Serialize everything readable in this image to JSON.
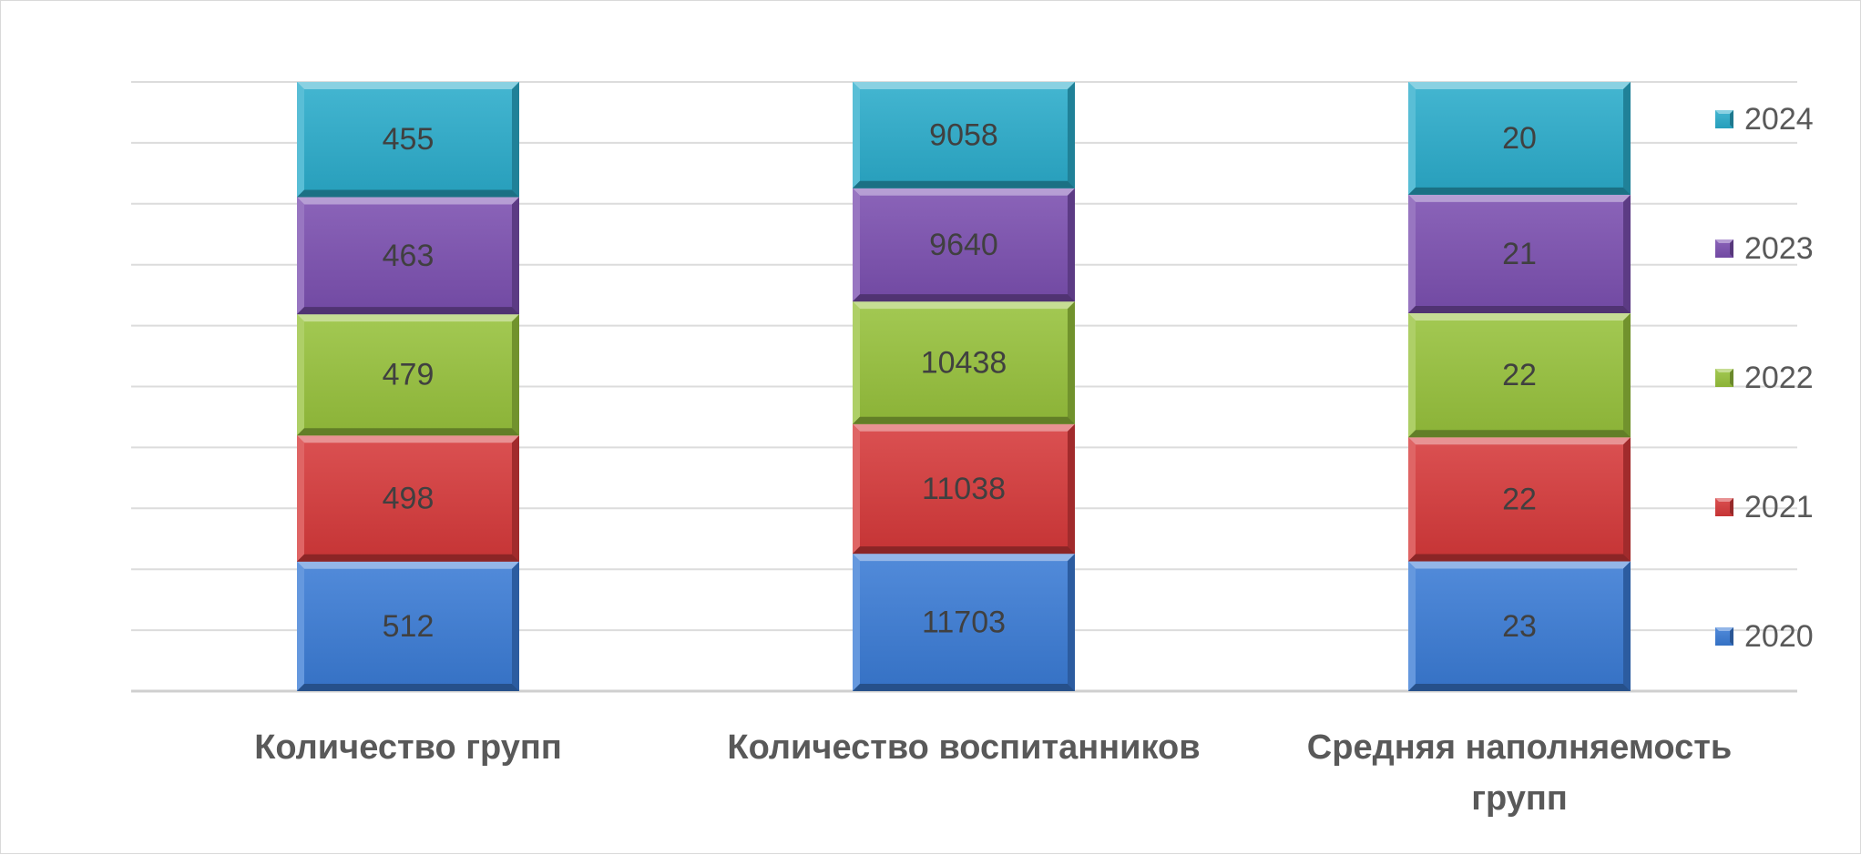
{
  "chart_data": {
    "type": "bar",
    "stacked": true,
    "percent_stacked": true,
    "style": "3d-bevel",
    "categories": [
      "Количество групп",
      "Количество воспитанников",
      "Средняя наполняемость групп"
    ],
    "series": [
      {
        "name": "2020",
        "values": [
          512,
          11703,
          23
        ],
        "color": "#3a7bd5"
      },
      {
        "name": "2021",
        "values": [
          498,
          11038,
          22
        ],
        "color": "#d6393a"
      },
      {
        "name": "2022",
        "values": [
          479,
          10438,
          22
        ],
        "color": "#97c23c"
      },
      {
        "name": "2023",
        "values": [
          463,
          9640,
          21
        ],
        "color": "#7b4fb0"
      },
      {
        "name": "2024",
        "values": [
          455,
          9058,
          20
        ],
        "color": "#2aaccb"
      }
    ],
    "grid": true,
    "legend": "right",
    "axis": {
      "y_tick_labels_shown": false
    },
    "text_colors": {
      "data_label": "#404040",
      "category_label": "#595959",
      "legend": "#595959"
    }
  }
}
